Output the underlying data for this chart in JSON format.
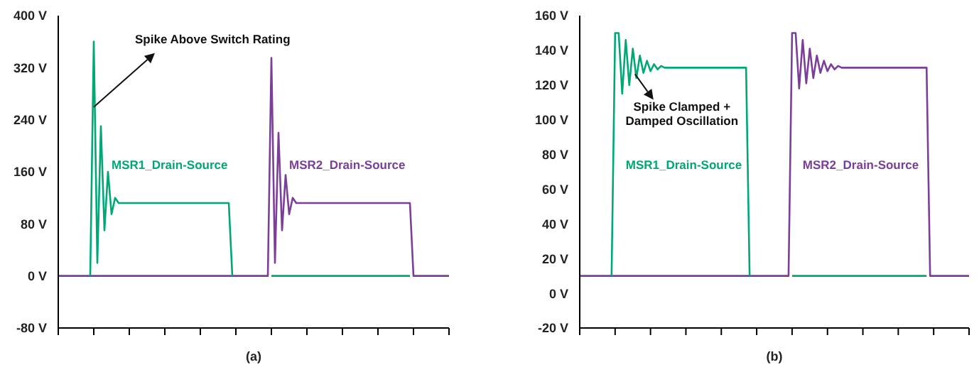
{
  "chart_data": [
    {
      "type": "line",
      "xlabel": "(a)",
      "categories": [
        null,
        null,
        null,
        null,
        null,
        null,
        null,
        null,
        null,
        null,
        null,
        null,
        null,
        null,
        null,
        null,
        null,
        null,
        null,
        null,
        null,
        null,
        null,
        null,
        null,
        null,
        null,
        null,
        null,
        null,
        null,
        null,
        null,
        null,
        null,
        null,
        null,
        null,
        null,
        null,
        null,
        null,
        null,
        null,
        null,
        null,
        null,
        null,
        null,
        null,
        null,
        null,
        null,
        null,
        null,
        null,
        null,
        null,
        null,
        null,
        null,
        null,
        null,
        null,
        null,
        null,
        null,
        null,
        null,
        null,
        null,
        null,
        null,
        null,
        null,
        null,
        null,
        null,
        null,
        null,
        null,
        null,
        null,
        null,
        null,
        null,
        null,
        null,
        null,
        null,
        null,
        null,
        null,
        null,
        null,
        null,
        null,
        null,
        null,
        null,
        null,
        null,
        null,
        null,
        null,
        null,
        null,
        null,
        null,
        null,
        null
      ],
      "ylim": [
        -80,
        400
      ],
      "yticks": [
        {
          "value": -80,
          "label": "-80 V"
        },
        {
          "value": 0,
          "label": "0 V"
        },
        {
          "value": 80,
          "label": "80 V"
        },
        {
          "value": 160,
          "label": "160 V"
        },
        {
          "value": 240,
          "label": "240 V"
        },
        {
          "value": 320,
          "label": "320 V"
        },
        {
          "value": 400,
          "label": "400 V"
        }
      ],
      "grid": false,
      "legend": false,
      "marker": "none",
      "line_style": "solid",
      "annotations": [
        "Spike Above Switch Rating"
      ],
      "series": [
        {
          "name": "MSR1_Drain-Source",
          "color": "#00a878",
          "values": [
            null,
            null,
            null,
            null,
            null,
            null,
            null,
            null,
            null,
            0,
            360,
            20,
            230,
            70,
            160,
            95,
            120,
            112,
            112,
            112,
            112,
            112,
            112,
            112,
            112,
            112,
            112,
            112,
            112,
            112,
            112,
            112,
            112,
            112,
            112,
            112,
            112,
            112,
            112,
            112,
            112,
            112,
            112,
            112,
            112,
            112,
            112,
            112,
            112,
            0,
            null,
            null,
            null,
            null,
            null,
            null,
            null,
            null,
            null,
            null,
            0,
            0,
            0,
            0,
            0,
            0,
            0,
            0,
            0,
            0,
            0,
            0,
            0,
            0,
            0,
            0,
            0,
            0,
            0,
            0,
            0,
            0,
            0,
            0,
            0,
            0,
            0,
            0,
            0,
            0,
            0,
            0,
            0,
            0,
            0,
            0,
            0,
            0,
            0,
            0,
            null,
            null,
            null,
            null,
            null,
            null,
            null,
            null,
            null,
            null,
            null
          ]
        },
        {
          "name": "MSR2_Drain-Source",
          "color": "#7b3f99",
          "values": [
            0,
            0,
            0,
            0,
            0,
            0,
            0,
            0,
            0,
            0,
            0,
            0,
            0,
            0,
            0,
            0,
            0,
            0,
            0,
            0,
            0,
            0,
            0,
            0,
            0,
            0,
            0,
            0,
            0,
            0,
            0,
            0,
            0,
            0,
            0,
            0,
            0,
            0,
            0,
            0,
            0,
            0,
            0,
            0,
            0,
            0,
            0,
            0,
            0,
            0,
            0,
            0,
            0,
            0,
            0,
            0,
            0,
            0,
            0,
            0,
            335,
            20,
            220,
            70,
            155,
            95,
            120,
            112,
            112,
            112,
            112,
            112,
            112,
            112,
            112,
            112,
            112,
            112,
            112,
            112,
            112,
            112,
            112,
            112,
            112,
            112,
            112,
            112,
            112,
            112,
            112,
            112,
            112,
            112,
            112,
            112,
            112,
            112,
            112,
            112,
            0,
            0,
            0,
            0,
            0,
            0,
            0,
            0,
            0,
            0,
            0
          ]
        }
      ]
    },
    {
      "type": "line",
      "xlabel": "(b)",
      "categories": [
        null,
        null,
        null,
        null,
        null,
        null,
        null,
        null,
        null,
        null,
        null,
        null,
        null,
        null,
        null,
        null,
        null,
        null,
        null,
        null,
        null,
        null,
        null,
        null,
        null,
        null,
        null,
        null,
        null,
        null,
        null,
        null,
        null,
        null,
        null,
        null,
        null,
        null,
        null,
        null,
        null,
        null,
        null,
        null,
        null,
        null,
        null,
        null,
        null,
        null,
        null,
        null,
        null,
        null,
        null,
        null,
        null,
        null,
        null,
        null,
        null,
        null,
        null,
        null,
        null,
        null,
        null,
        null,
        null,
        null,
        null,
        null,
        null,
        null,
        null,
        null,
        null,
        null,
        null,
        null,
        null,
        null,
        null,
        null,
        null,
        null,
        null,
        null,
        null,
        null,
        null,
        null,
        null,
        null,
        null,
        null,
        null,
        null,
        null,
        null,
        null,
        null,
        null,
        null,
        null,
        null,
        null,
        null,
        null,
        null,
        null
      ],
      "ylim": [
        -20,
        160
      ],
      "yticks": [
        {
          "value": -20,
          "label": "-20 V"
        },
        {
          "value": 0,
          "label": "0 V"
        },
        {
          "value": 20,
          "label": "20 V"
        },
        {
          "value": 40,
          "label": "40 V"
        },
        {
          "value": 60,
          "label": "60 V"
        },
        {
          "value": 80,
          "label": "80 V"
        },
        {
          "value": 100,
          "label": "100 V"
        },
        {
          "value": 120,
          "label": "120 V"
        },
        {
          "value": 140,
          "label": "140 V"
        },
        {
          "value": 160,
          "label": "160 V"
        }
      ],
      "grid": false,
      "legend": false,
      "marker": "none",
      "line_style": "solid",
      "annotations": [
        "Spike Clamped +\nDamped Oscillation"
      ],
      "series": [
        {
          "name": "MSR1_Drain-Source",
          "color": "#00a878",
          "values": [
            null,
            null,
            null,
            null,
            null,
            null,
            null,
            null,
            null,
            10,
            150,
            150,
            115,
            146,
            120,
            141,
            124,
            137,
            127,
            134,
            128,
            132,
            129,
            131,
            130,
            130,
            130,
            130,
            130,
            130,
            130,
            130,
            130,
            130,
            130,
            130,
            130,
            130,
            130,
            130,
            130,
            130,
            130,
            130,
            130,
            130,
            130,
            130,
            10,
            null,
            null,
            null,
            null,
            null,
            null,
            null,
            null,
            null,
            null,
            null,
            10,
            10,
            10,
            10,
            10,
            10,
            10,
            10,
            10,
            10,
            10,
            10,
            10,
            10,
            10,
            10,
            10,
            10,
            10,
            10,
            10,
            10,
            10,
            10,
            10,
            10,
            10,
            10,
            10,
            10,
            10,
            10,
            10,
            10,
            10,
            10,
            10,
            10,
            10,
            null,
            null,
            null,
            null,
            null,
            null,
            null,
            null,
            null,
            null,
            null,
            null
          ]
        },
        {
          "name": "MSR2_Drain-Source",
          "color": "#7b3f99",
          "values": [
            10,
            10,
            10,
            10,
            10,
            10,
            10,
            10,
            10,
            10,
            10,
            10,
            10,
            10,
            10,
            10,
            10,
            10,
            10,
            10,
            10,
            10,
            10,
            10,
            10,
            10,
            10,
            10,
            10,
            10,
            10,
            10,
            10,
            10,
            10,
            10,
            10,
            10,
            10,
            10,
            10,
            10,
            10,
            10,
            10,
            10,
            10,
            10,
            10,
            10,
            10,
            10,
            10,
            10,
            10,
            10,
            10,
            10,
            10,
            10,
            150,
            150,
            118,
            146,
            121,
            141,
            124,
            137,
            127,
            134,
            128,
            132,
            129,
            131,
            130,
            130,
            130,
            130,
            130,
            130,
            130,
            130,
            130,
            130,
            130,
            130,
            130,
            130,
            130,
            130,
            130,
            130,
            130,
            130,
            130,
            130,
            130,
            130,
            130,
            10,
            10,
            10,
            10,
            10,
            10,
            10,
            10,
            10,
            10,
            10,
            10
          ]
        }
      ]
    }
  ]
}
